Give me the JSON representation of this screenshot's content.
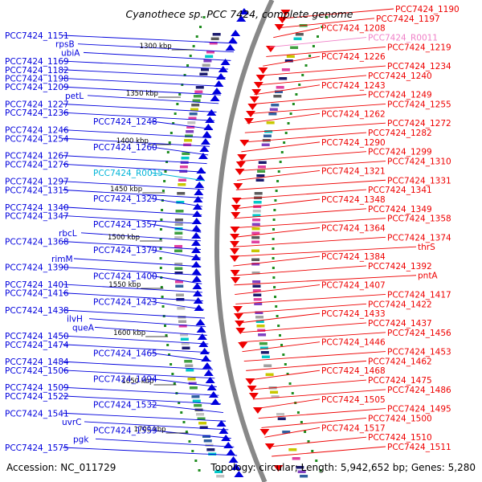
{
  "title": "Cyanothece sp. PCC 7424, complete genome",
  "footer": {
    "accession": "Accession: NC_011729",
    "summary": "Topology: circular; Length: 5,942,652 bp; Genes: 5,280"
  },
  "colors": {
    "minus_strand": "#0000dd",
    "plus_strand": "#ee0000",
    "rna_left": "#00b4d8",
    "rna_right": "#f080c8",
    "backbone": "#888888",
    "gc_dot": "#1e8c1e"
  },
  "scale_labels": [
    "1300 kbp",
    "1350 kbp",
    "1400 kbp",
    "1450 kbp",
    "1500 kbp",
    "1550 kbp",
    "1600 kbp",
    "1650 kbp",
    "1700 kbp"
  ],
  "left_labels": [
    {
      "text": "PCC7424_1151",
      "kind": "gene"
    },
    {
      "text": "rpsB",
      "kind": "gene"
    },
    {
      "text": "ubiA",
      "kind": "gene"
    },
    {
      "text": "PCC7424_1169",
      "kind": "gene"
    },
    {
      "text": "PCC7424_1182",
      "kind": "gene"
    },
    {
      "text": "PCC7424_1198",
      "kind": "gene"
    },
    {
      "text": "PCC7424_1209",
      "kind": "gene"
    },
    {
      "text": "petL",
      "kind": "gene"
    },
    {
      "text": "PCC7424_1227",
      "kind": "gene"
    },
    {
      "text": "PCC7424_1236",
      "kind": "gene"
    },
    {
      "text": "PCC7424_1248",
      "kind": "gene"
    },
    {
      "text": "PCC7424_1246",
      "kind": "gene"
    },
    {
      "text": "PCC7424_1254",
      "kind": "gene"
    },
    {
      "text": "PCC7424_1260",
      "kind": "gene"
    },
    {
      "text": "PCC7424_1267",
      "kind": "gene"
    },
    {
      "text": "PCC7424_1276",
      "kind": "gene"
    },
    {
      "text": "PCC7424_R0015",
      "kind": "rna"
    },
    {
      "text": "PCC7424_1297",
      "kind": "gene"
    },
    {
      "text": "PCC7424_1315",
      "kind": "gene"
    },
    {
      "text": "PCC7424_1329",
      "kind": "gene"
    },
    {
      "text": "PCC7424_1340",
      "kind": "gene"
    },
    {
      "text": "PCC7424_1347",
      "kind": "gene"
    },
    {
      "text": "PCC7424_1357",
      "kind": "gene"
    },
    {
      "text": "rbcL",
      "kind": "gene"
    },
    {
      "text": "PCC7424_1368",
      "kind": "gene"
    },
    {
      "text": "PCC7424_1379",
      "kind": "gene"
    },
    {
      "text": "rimM",
      "kind": "gene"
    },
    {
      "text": "PCC7424_1390",
      "kind": "gene"
    },
    {
      "text": "PCC7424_1400",
      "kind": "gene"
    },
    {
      "text": "PCC7424_1401",
      "kind": "gene"
    },
    {
      "text": "PCC7424_1416",
      "kind": "gene"
    },
    {
      "text": "PCC7424_1423",
      "kind": "gene"
    },
    {
      "text": "PCC7424_1438",
      "kind": "gene"
    },
    {
      "text": "ilvH",
      "kind": "gene"
    },
    {
      "text": "queA",
      "kind": "gene"
    },
    {
      "text": "PCC7424_1450",
      "kind": "gene"
    },
    {
      "text": "PCC7424_1474",
      "kind": "gene"
    },
    {
      "text": "PCC7424_1465",
      "kind": "gene"
    },
    {
      "text": "PCC7424_1484",
      "kind": "gene"
    },
    {
      "text": "PCC7424_1506",
      "kind": "gene"
    },
    {
      "text": "PCC7424_1494",
      "kind": "gene"
    },
    {
      "text": "PCC7424_1509",
      "kind": "gene"
    },
    {
      "text": "PCC7424_1522",
      "kind": "gene"
    },
    {
      "text": "PCC7424_1532",
      "kind": "gene"
    },
    {
      "text": "PCC7424_1541",
      "kind": "gene"
    },
    {
      "text": "uvrC",
      "kind": "gene"
    },
    {
      "text": "PCC7424_1559",
      "kind": "gene"
    },
    {
      "text": "pgk",
      "kind": "gene"
    },
    {
      "text": "PCC7424_1575",
      "kind": "gene"
    }
  ],
  "right_labels": [
    {
      "text": "PCC7424_1190",
      "kind": "gene"
    },
    {
      "text": "PCC7424_1197",
      "kind": "gene"
    },
    {
      "text": "PCC7424_1208",
      "kind": "gene"
    },
    {
      "text": "PCC7424_R0011",
      "kind": "rna"
    },
    {
      "text": "PCC7424_1219",
      "kind": "gene"
    },
    {
      "text": "PCC7424_1226",
      "kind": "gene"
    },
    {
      "text": "PCC7424_1234",
      "kind": "gene"
    },
    {
      "text": "PCC7424_1240",
      "kind": "gene"
    },
    {
      "text": "PCC7424_1243",
      "kind": "gene"
    },
    {
      "text": "PCC7424_1249",
      "kind": "gene"
    },
    {
      "text": "PCC7424_1255",
      "kind": "gene"
    },
    {
      "text": "PCC7424_1262",
      "kind": "gene"
    },
    {
      "text": "PCC7424_1272",
      "kind": "gene"
    },
    {
      "text": "PCC7424_1282",
      "kind": "gene"
    },
    {
      "text": "PCC7424_1290",
      "kind": "gene"
    },
    {
      "text": "PCC7424_1299",
      "kind": "gene"
    },
    {
      "text": "PCC7424_1310",
      "kind": "gene"
    },
    {
      "text": "PCC7424_1321",
      "kind": "gene"
    },
    {
      "text": "PCC7424_1331",
      "kind": "gene"
    },
    {
      "text": "PCC7424_1341",
      "kind": "gene"
    },
    {
      "text": "PCC7424_1348",
      "kind": "gene"
    },
    {
      "text": "PCC7424_1349",
      "kind": "gene"
    },
    {
      "text": "PCC7424_1358",
      "kind": "gene"
    },
    {
      "text": "PCC7424_1364",
      "kind": "gene"
    },
    {
      "text": "PCC7424_1374",
      "kind": "gene"
    },
    {
      "text": "thrS",
      "kind": "gene"
    },
    {
      "text": "PCC7424_1384",
      "kind": "gene"
    },
    {
      "text": "PCC7424_1392",
      "kind": "gene"
    },
    {
      "text": "pntA",
      "kind": "gene"
    },
    {
      "text": "PCC7424_1407",
      "kind": "gene"
    },
    {
      "text": "PCC7424_1417",
      "kind": "gene"
    },
    {
      "text": "PCC7424_1422",
      "kind": "gene"
    },
    {
      "text": "PCC7424_1433",
      "kind": "gene"
    },
    {
      "text": "PCC7424_1437",
      "kind": "gene"
    },
    {
      "text": "PCC7424_1456",
      "kind": "gene"
    },
    {
      "text": "PCC7424_1446",
      "kind": "gene"
    },
    {
      "text": "PCC7424_1453",
      "kind": "gene"
    },
    {
      "text": "PCC7424_1462",
      "kind": "gene"
    },
    {
      "text": "PCC7424_1468",
      "kind": "gene"
    },
    {
      "text": "PCC7424_1475",
      "kind": "gene"
    },
    {
      "text": "PCC7424_1486",
      "kind": "gene"
    },
    {
      "text": "PCC7424_1505",
      "kind": "gene"
    },
    {
      "text": "PCC7424_1495",
      "kind": "gene"
    },
    {
      "text": "PCC7424_1500",
      "kind": "gene"
    },
    {
      "text": "PCC7424_1517",
      "kind": "gene"
    },
    {
      "text": "PCC7424_1510",
      "kind": "gene"
    },
    {
      "text": "PCC7424_1511",
      "kind": "gene"
    }
  ]
}
